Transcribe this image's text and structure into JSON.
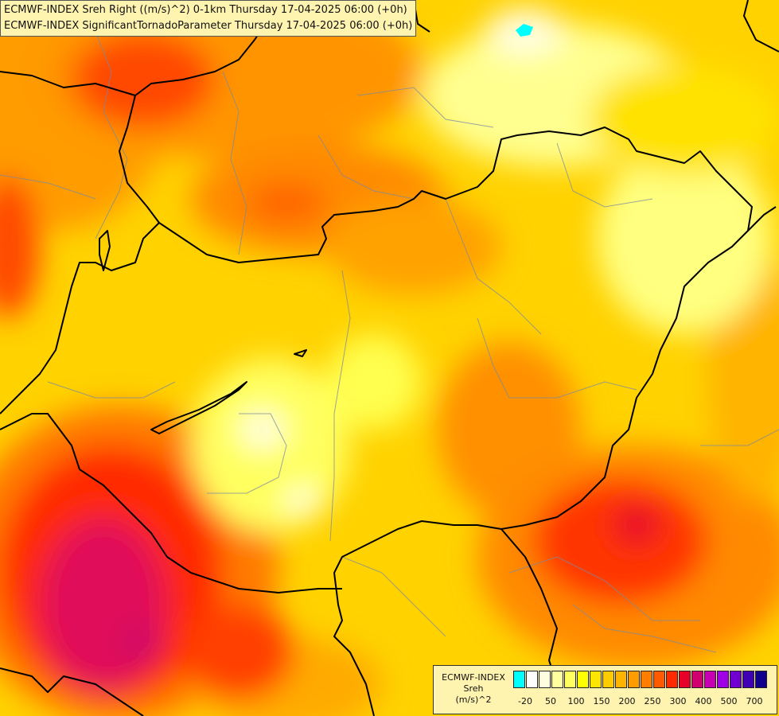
{
  "map": {
    "title_line1": "ECMWF-INDEX Sreh Right ((m/s)^2) 0-1km Thursday 17-04-2025 06:00 (+0h)",
    "title_line2": "ECMWF-INDEX SignificantTornadoParameter Thursday 17-04-2025 06:00 (+0h)"
  },
  "legend": {
    "line1": "ECMWF-INDEX",
    "line2": "Sreh",
    "line3": "(m/s)^2",
    "colors": [
      "#00ffff",
      "#ffffff",
      "#fffde0",
      "#ffffa0",
      "#ffff60",
      "#ffff00",
      "#ffe600",
      "#ffcc00",
      "#ffb400",
      "#ff9c00",
      "#ff7e00",
      "#ff5a00",
      "#ff2a00",
      "#e6002a",
      "#d2006e",
      "#c800b4",
      "#a000e6",
      "#7000d2",
      "#4000b4",
      "#10008c"
    ],
    "ticks": [
      "-20",
      "50",
      "100",
      "150",
      "200",
      "250",
      "300",
      "400",
      "500",
      "700"
    ]
  }
}
